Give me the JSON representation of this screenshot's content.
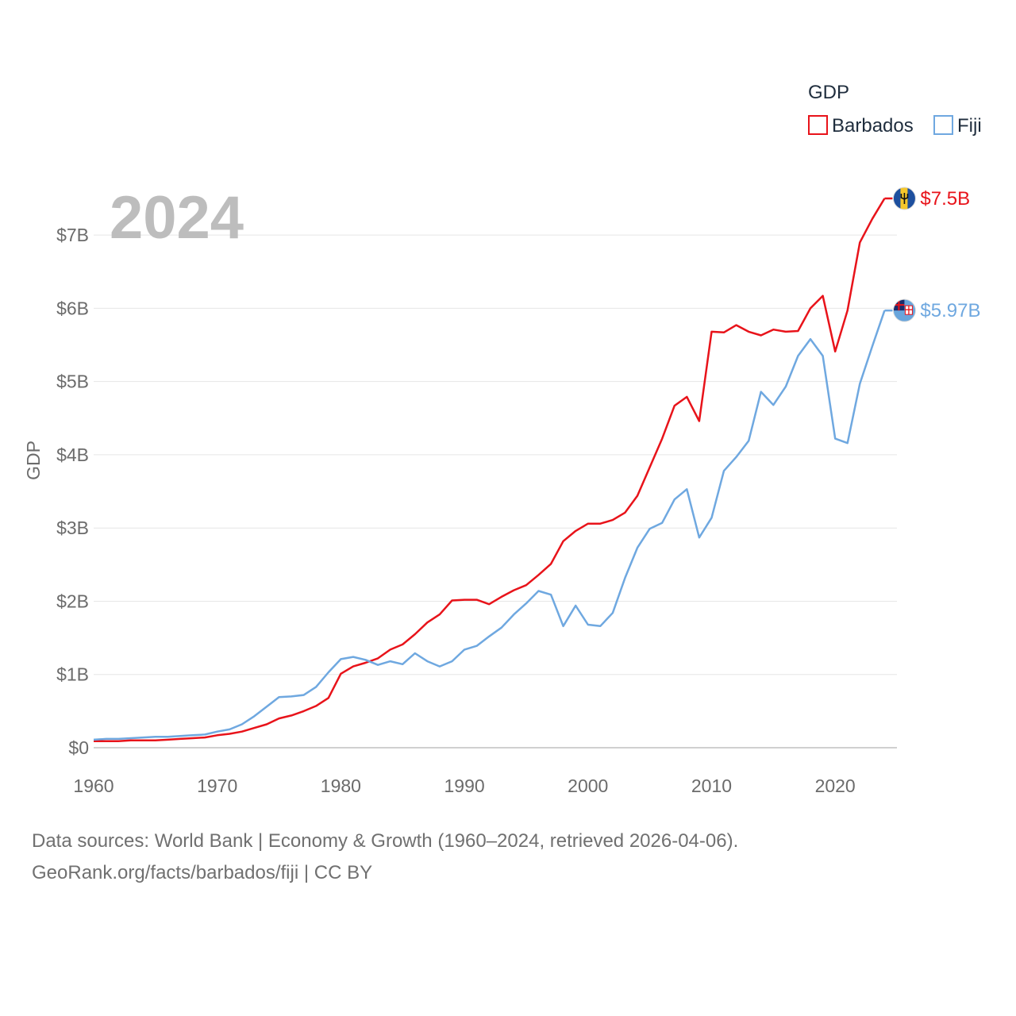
{
  "chart_data": {
    "type": "line",
    "ylabel": "GDP",
    "legend_title": "GDP",
    "legend_position": "top-right",
    "big_label": "2024",
    "x": [
      1960,
      1961,
      1962,
      1963,
      1964,
      1965,
      1966,
      1967,
      1968,
      1969,
      1970,
      1971,
      1972,
      1973,
      1974,
      1975,
      1976,
      1977,
      1978,
      1979,
      1980,
      1981,
      1982,
      1983,
      1984,
      1985,
      1986,
      1987,
      1988,
      1989,
      1990,
      1991,
      1992,
      1993,
      1994,
      1995,
      1996,
      1997,
      1998,
      1999,
      2000,
      2001,
      2002,
      2003,
      2004,
      2005,
      2006,
      2007,
      2008,
      2009,
      2010,
      2011,
      2012,
      2013,
      2014,
      2015,
      2016,
      2017,
      2018,
      2019,
      2020,
      2021,
      2022,
      2023,
      2024
    ],
    "xlim": [
      1960,
      2025
    ],
    "ylim": [
      0,
      7.5
    ],
    "x_ticks": [
      1960,
      1970,
      1980,
      1990,
      2000,
      2010,
      2020
    ],
    "y_ticks": [
      0,
      1,
      2,
      3,
      4,
      5,
      6,
      7
    ],
    "y_tick_labels": [
      "$0",
      "$1B",
      "$2B",
      "$3B",
      "$4B",
      "$5B",
      "$6B",
      "$7B"
    ],
    "series": [
      {
        "name": "Barbados",
        "color": "#e8131a",
        "end_label": "$7.5B",
        "flag": "barbados-flag-icon",
        "values": [
          0.09,
          0.09,
          0.09,
          0.1,
          0.1,
          0.1,
          0.11,
          0.12,
          0.13,
          0.14,
          0.17,
          0.19,
          0.22,
          0.27,
          0.32,
          0.4,
          0.44,
          0.5,
          0.57,
          0.68,
          1.01,
          1.11,
          1.16,
          1.22,
          1.34,
          1.41,
          1.55,
          1.71,
          1.82,
          2.01,
          2.02,
          2.02,
          1.96,
          2.06,
          2.15,
          2.22,
          2.36,
          2.51,
          2.82,
          2.96,
          3.06,
          3.06,
          3.11,
          3.21,
          3.44,
          3.83,
          4.22,
          4.67,
          4.79,
          4.46,
          5.68,
          5.67,
          5.77,
          5.68,
          5.63,
          5.71,
          5.68,
          5.69,
          6.0,
          6.17,
          5.41,
          5.97,
          6.9,
          7.22,
          7.5
        ]
      },
      {
        "name": "Fiji",
        "color": "#6fa8e0",
        "end_label": "$5.97B",
        "flag": "fiji-flag-icon",
        "values": [
          0.11,
          0.12,
          0.12,
          0.13,
          0.14,
          0.15,
          0.15,
          0.16,
          0.17,
          0.18,
          0.22,
          0.25,
          0.32,
          0.43,
          0.56,
          0.69,
          0.7,
          0.72,
          0.83,
          1.03,
          1.21,
          1.24,
          1.2,
          1.13,
          1.18,
          1.14,
          1.29,
          1.18,
          1.11,
          1.18,
          1.34,
          1.39,
          1.52,
          1.64,
          1.82,
          1.97,
          2.14,
          2.09,
          1.66,
          1.94,
          1.68,
          1.66,
          1.84,
          2.32,
          2.73,
          2.99,
          3.07,
          3.39,
          3.53,
          2.87,
          3.14,
          3.78,
          3.97,
          4.19,
          4.86,
          4.68,
          4.93,
          5.35,
          5.58,
          5.35,
          4.22,
          4.16,
          4.97,
          5.48,
          5.97
        ]
      }
    ]
  },
  "footer": {
    "line1": "Data sources: World Bank | Economy & Growth (1960–2024, retrieved 2026-04-06).",
    "line2": "GeoRank.org/facts/barbados/fiji | CC BY"
  }
}
